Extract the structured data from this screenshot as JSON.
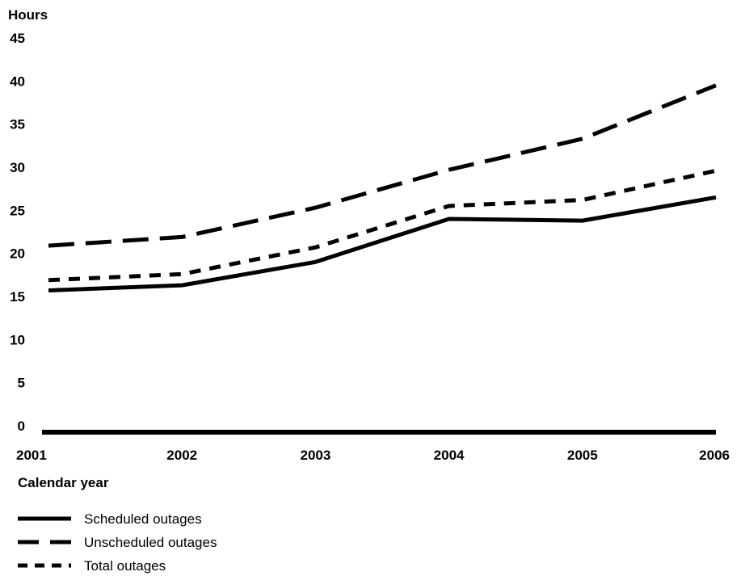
{
  "chart_data": {
    "type": "line",
    "ylabel": "Hours",
    "xlabel": "Calendar year",
    "ylim": [
      0,
      45
    ],
    "yticks": [
      0,
      5,
      10,
      15,
      20,
      25,
      30,
      35,
      40,
      45
    ],
    "categories": [
      "2001",
      "2002",
      "2003",
      "2004",
      "2005",
      "2006"
    ],
    "grid": false,
    "legend_position": "bottom-left",
    "series": [
      {
        "name": "Scheduled outages",
        "style": "solid",
        "color": "#000000",
        "values": [
          15.7,
          16.3,
          19.0,
          24.0,
          23.8,
          26.5
        ]
      },
      {
        "name": "Unscheduled outages",
        "style": "long-dash",
        "color": "#000000",
        "values": [
          20.9,
          21.9,
          25.3,
          29.7,
          33.3,
          39.5
        ]
      },
      {
        "name": "Total outages",
        "style": "short-dash",
        "color": "#000000",
        "values": [
          16.9,
          17.6,
          20.7,
          25.5,
          26.2,
          29.6
        ]
      }
    ]
  }
}
